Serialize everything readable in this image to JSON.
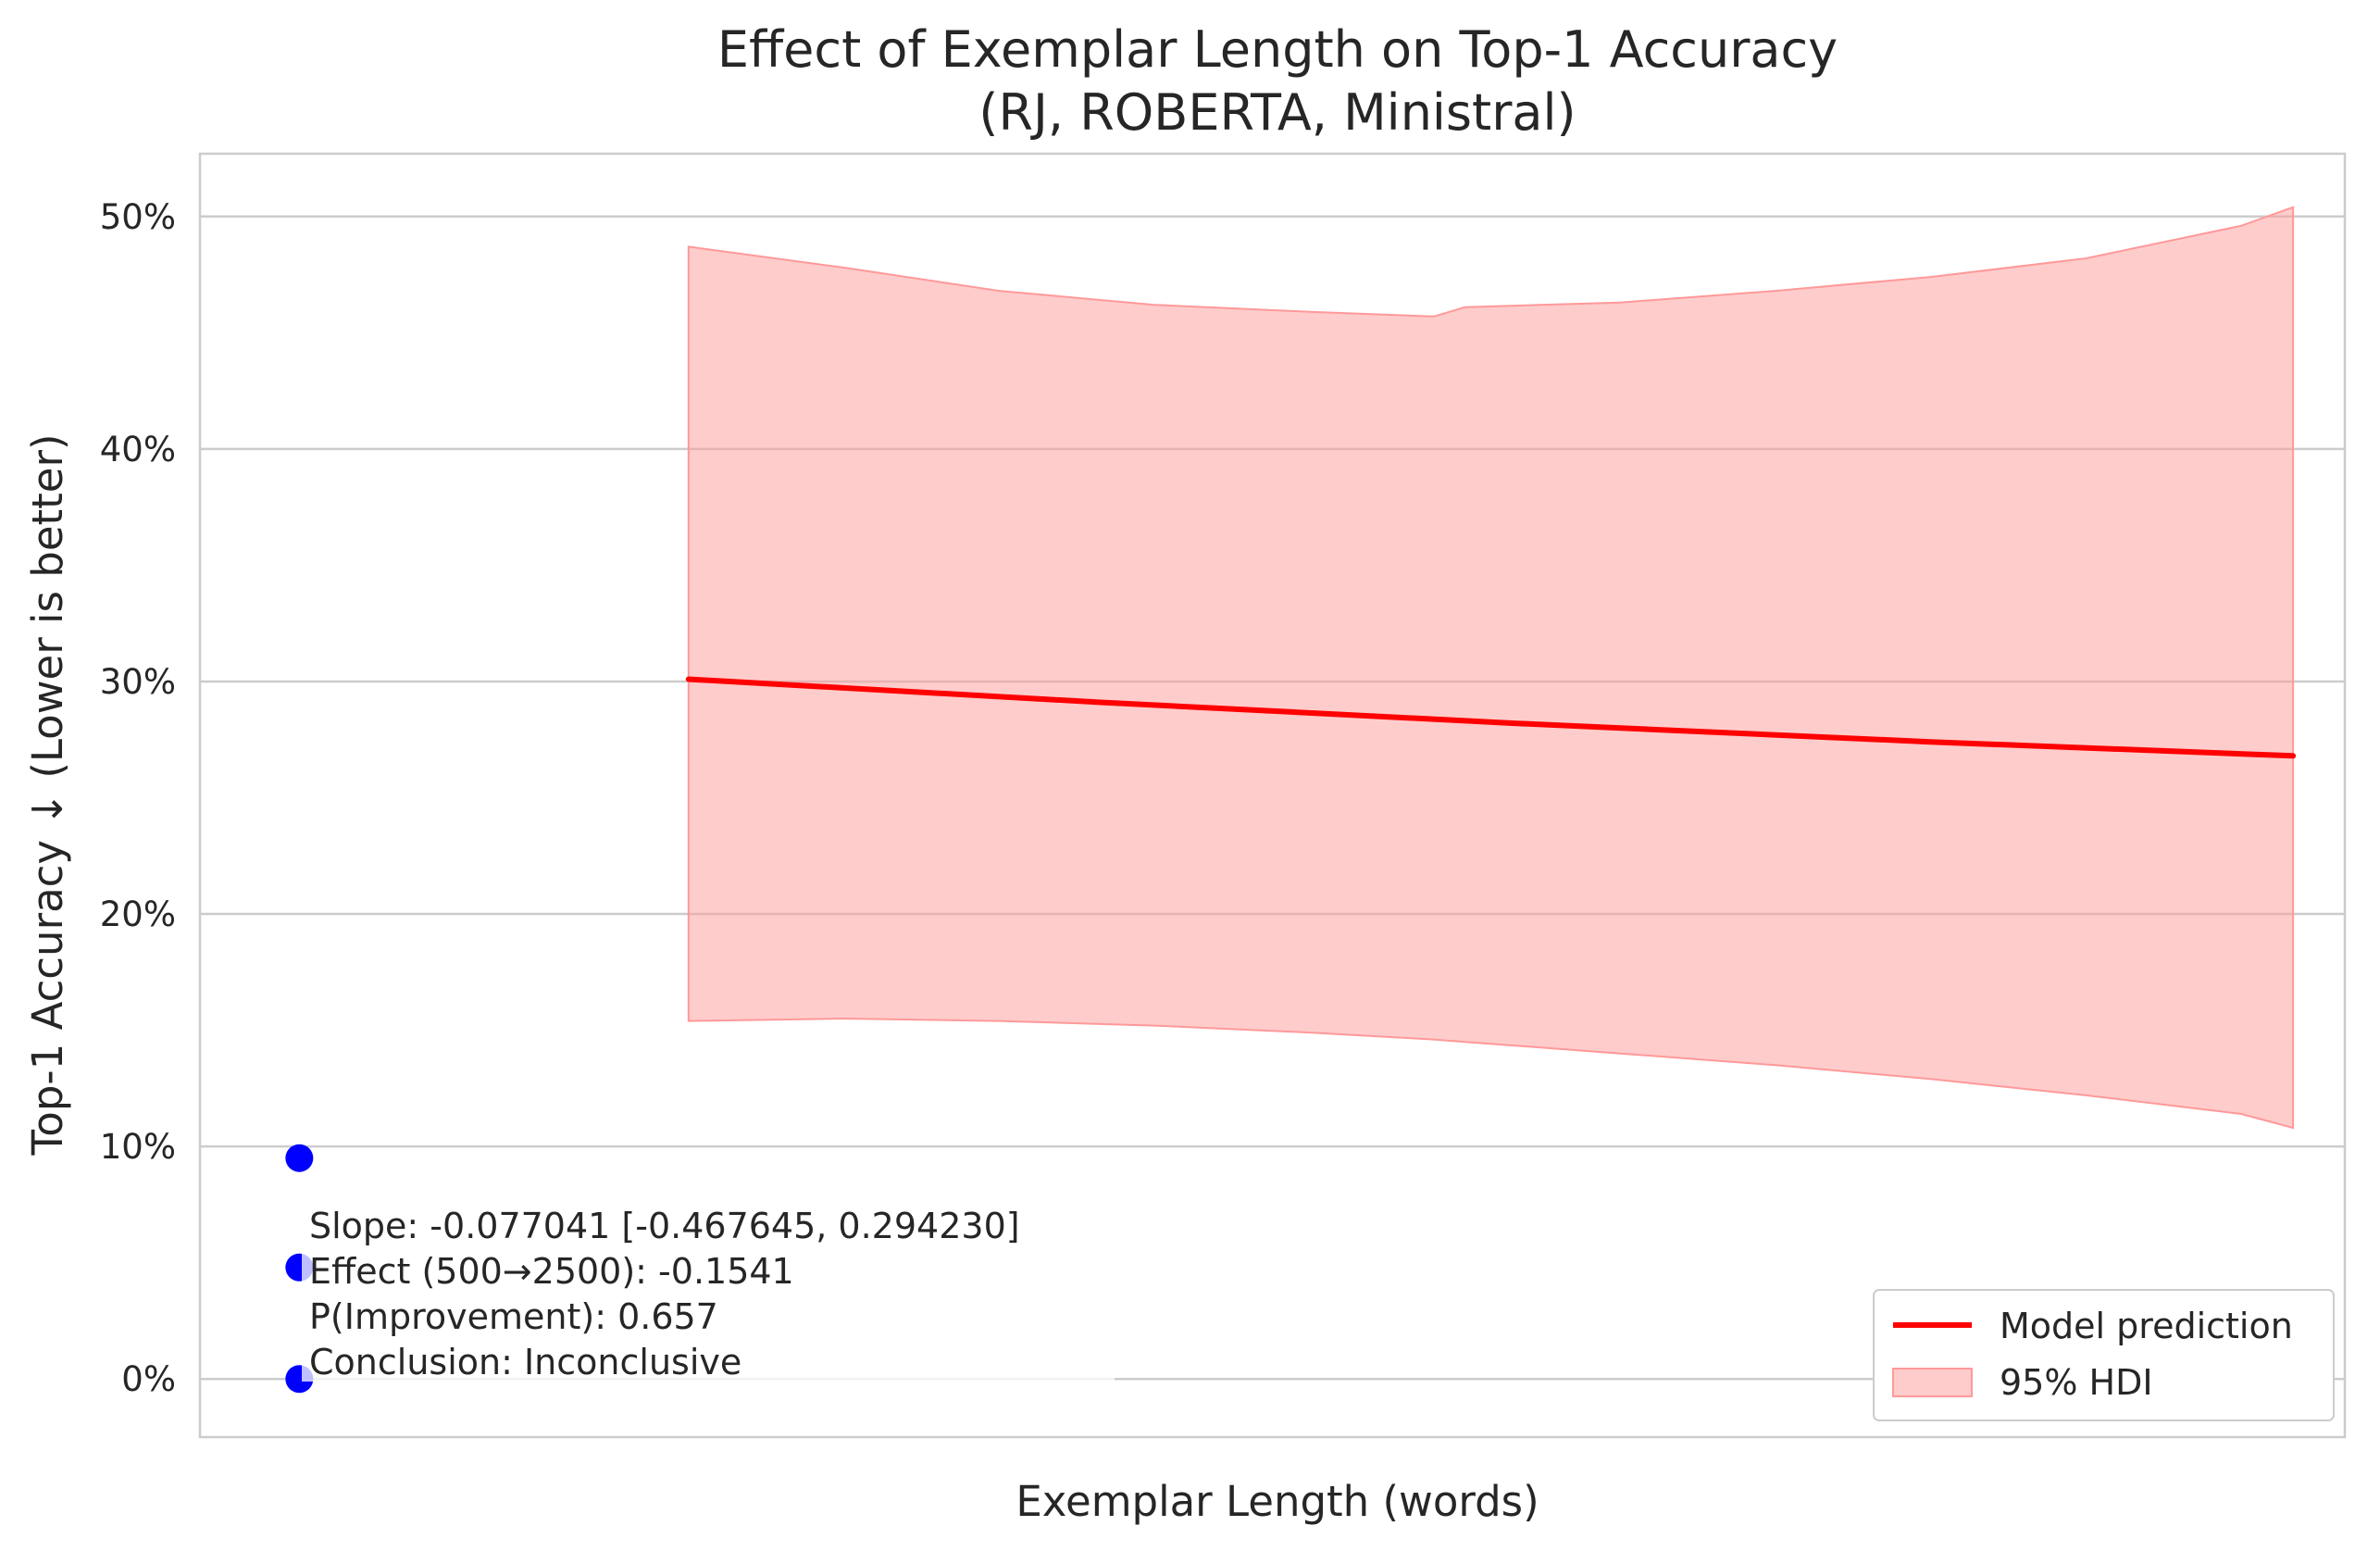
{
  "chart_data": {
    "type": "line",
    "title": "Effect of Exemplar Length on Top-1 Accuracy",
    "subtitle": "(RJ, ROBERTA, Ministral)",
    "xlabel": "Exemplar Length (words)",
    "ylabel": "Top-1 Accuracy ↓ (Lower is better)",
    "ylim": [
      -0.025,
      0.527
    ],
    "xlim": [
      -36,
      1000
    ],
    "grid": true,
    "y_ticks": [
      {
        "value": 0.0,
        "label": "0%"
      },
      {
        "value": 0.1,
        "label": "10%"
      },
      {
        "value": 0.2,
        "label": "20%"
      },
      {
        "value": 0.3,
        "label": "30%"
      },
      {
        "value": 0.4,
        "label": "40%"
      },
      {
        "value": 0.5,
        "label": "50%"
      }
    ],
    "observed_points": [
      {
        "x": 12,
        "y": 0.095,
        "color": "#0000ff"
      },
      {
        "x": 12,
        "y": 0.048,
        "color": "#0000ff"
      },
      {
        "x": 12,
        "y": 0.0,
        "color": "#0000ff"
      }
    ],
    "prediction": {
      "name": "Model prediction",
      "color": "#ff0000",
      "x": [
        200,
        400,
        600,
        800,
        975
      ],
      "y": [
        0.301,
        0.291,
        0.282,
        0.274,
        0.268
      ]
    },
    "hdi": {
      "name": "95% HDI",
      "color": "#ff9999",
      "x": [
        200,
        275,
        350,
        425,
        500,
        560,
        575,
        650,
        725,
        800,
        875,
        950,
        975
      ],
      "upper": [
        0.487,
        0.478,
        0.468,
        0.462,
        0.459,
        0.457,
        0.461,
        0.463,
        0.468,
        0.474,
        0.482,
        0.496,
        0.504
      ],
      "lower": [
        0.154,
        0.155,
        0.154,
        0.152,
        0.149,
        0.146,
        0.145,
        0.14,
        0.135,
        0.129,
        0.122,
        0.114,
        0.108
      ]
    },
    "annotation": [
      "Slope: -0.077041 [-0.467645, 0.294230]",
      "Effect (500→2500): -0.1541",
      "P(Improvement): 0.657",
      "Conclusion: Inconclusive"
    ],
    "legend_placement": "lower right",
    "legend": [
      "Model prediction",
      "95% HDI"
    ]
  }
}
